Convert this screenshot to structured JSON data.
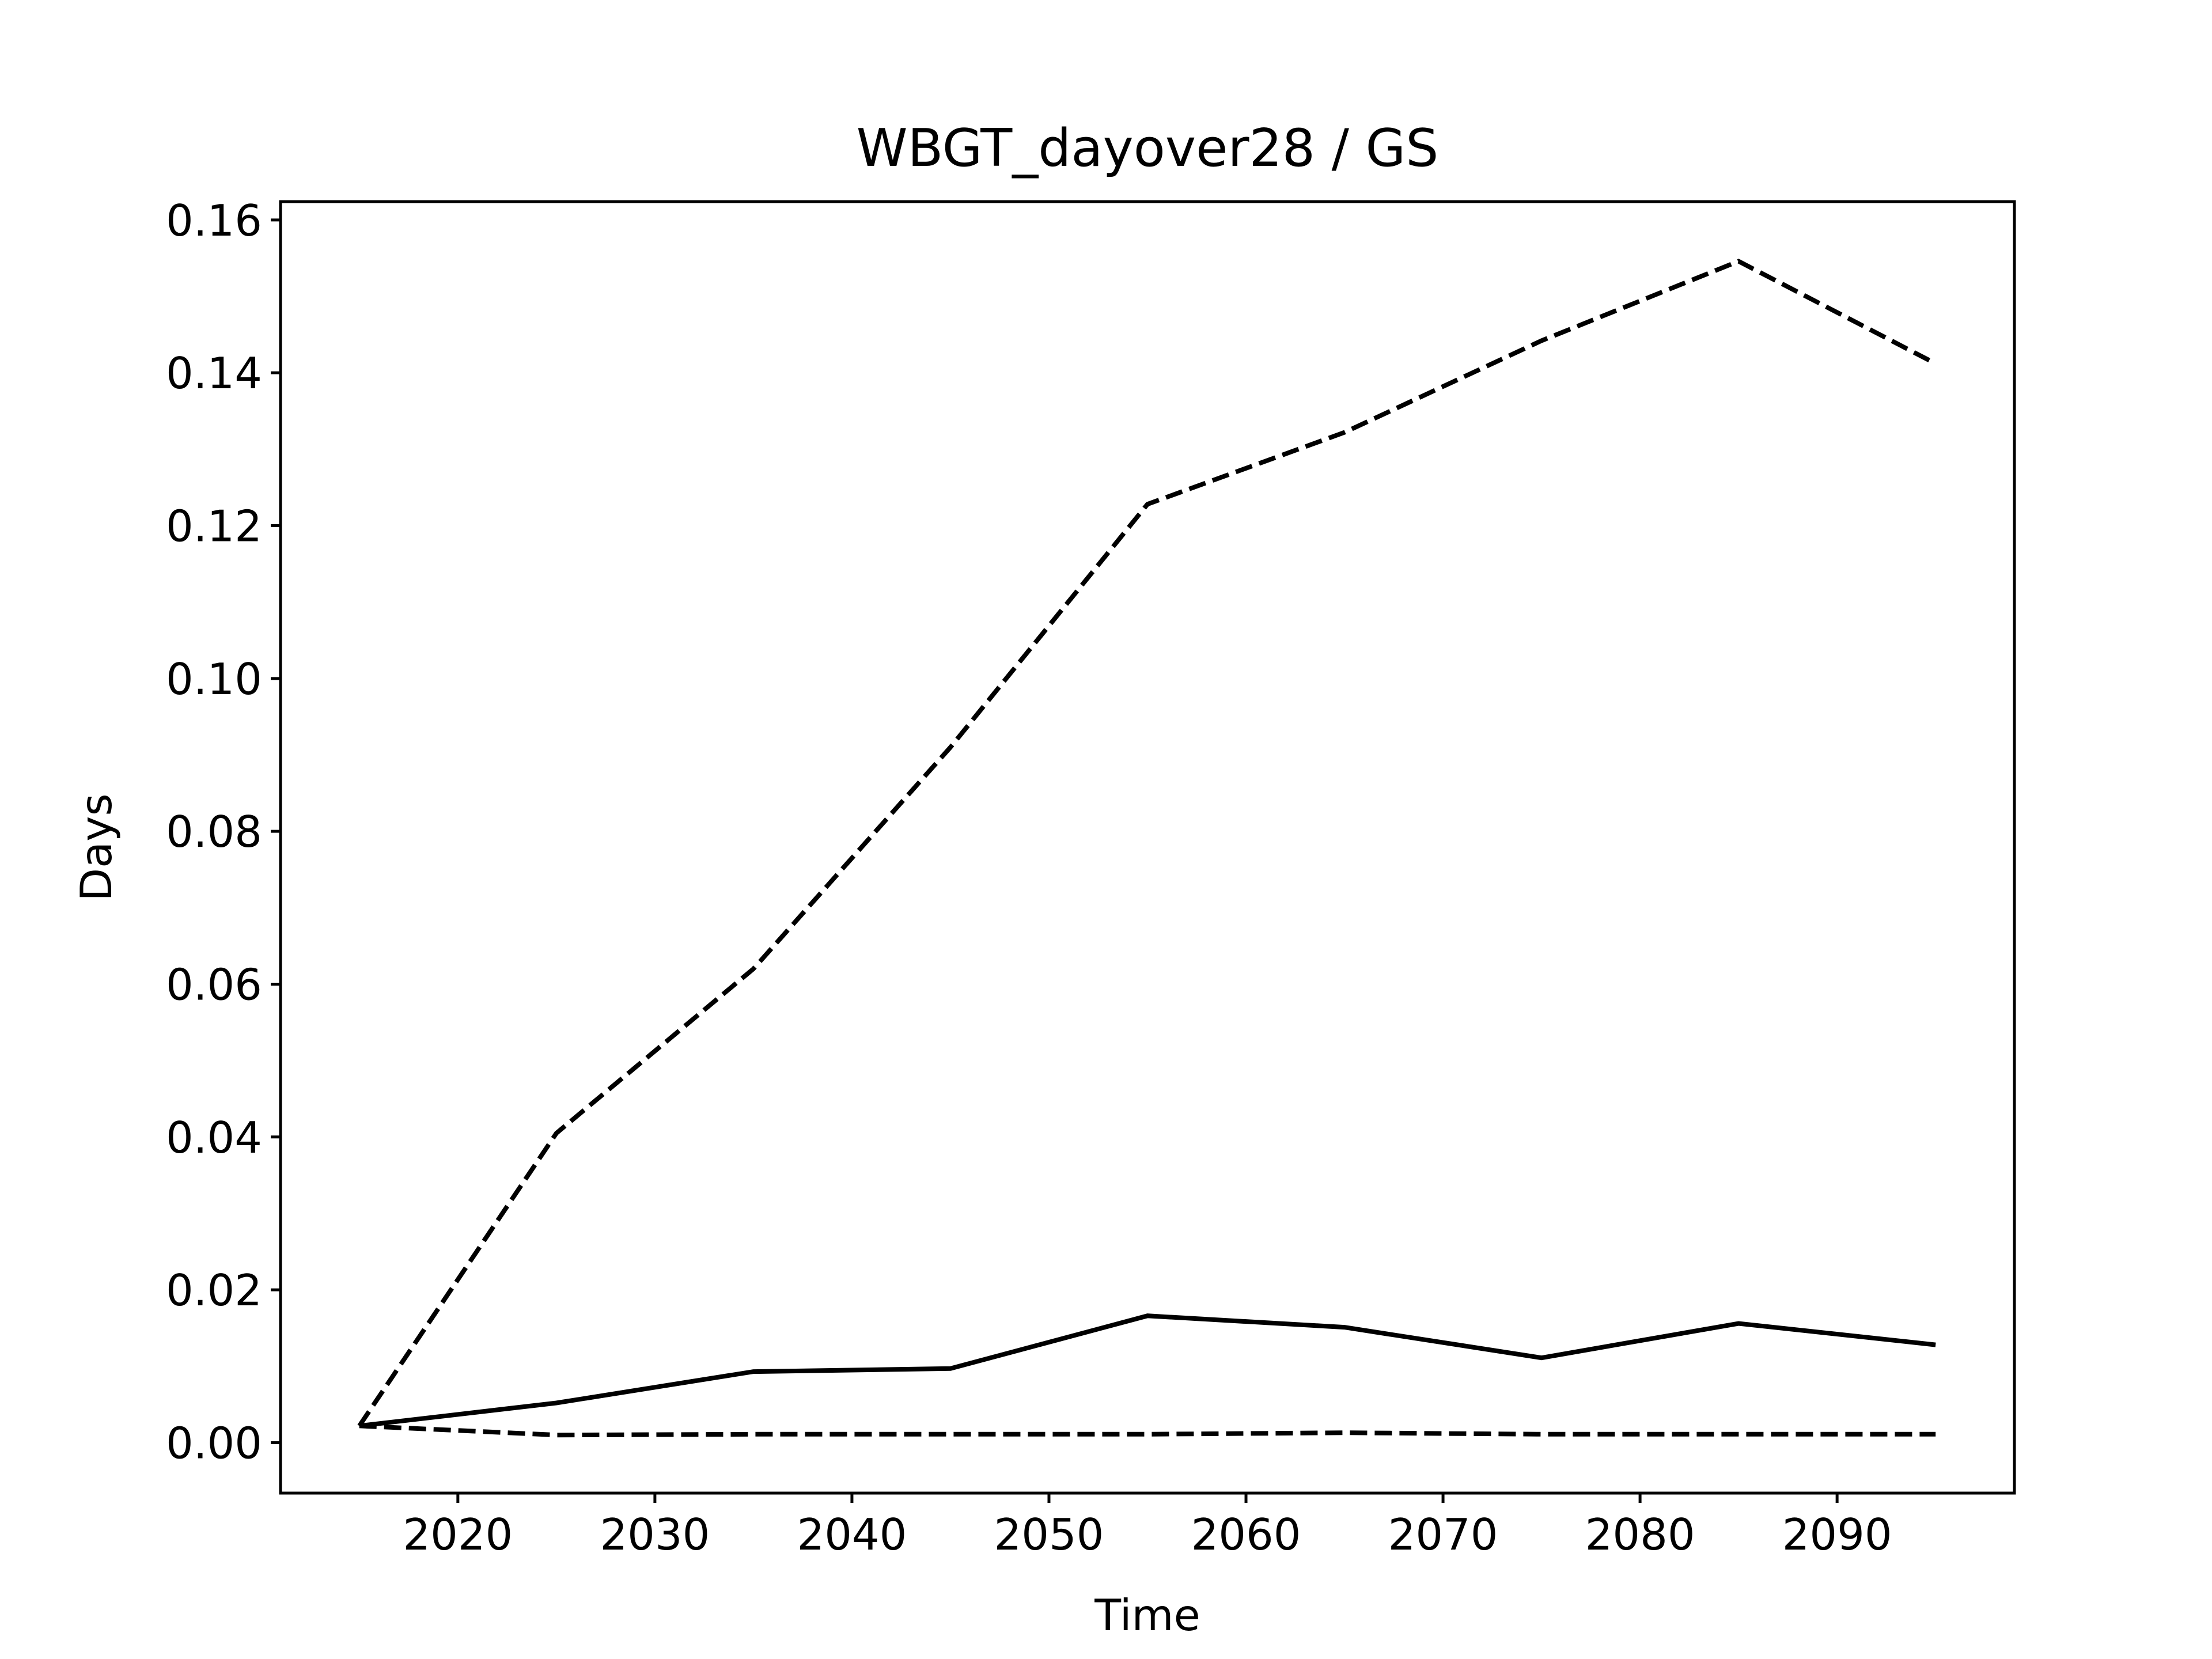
{
  "chart_data": {
    "type": "line",
    "title": "WBGT_dayover28 / GS",
    "xlabel": "Time",
    "ylabel": "Days",
    "xlim": [
      2011,
      2099
    ],
    "ylim": [
      -0.0066,
      0.1624
    ],
    "xticks": [
      2020,
      2030,
      2040,
      2050,
      2060,
      2070,
      2080,
      2090
    ],
    "yticks": [
      0.0,
      0.02,
      0.04,
      0.06,
      0.08,
      0.1,
      0.12,
      0.14,
      0.16
    ],
    "ytick_labels": [
      "0.00",
      "0.02",
      "0.04",
      "0.06",
      "0.08",
      "0.10",
      "0.12",
      "0.14",
      "0.16"
    ],
    "grid": false,
    "series": [
      {
        "style": "dashed",
        "color": "#000000",
        "x": [
          2015,
          2025,
          2035,
          2045,
          2055,
          2065,
          2075,
          2085,
          2095
        ],
        "values": [
          0.0022,
          0.0405,
          0.062,
          0.091,
          0.1228,
          0.1322,
          0.1442,
          0.1546,
          0.1412
        ]
      },
      {
        "style": "solid",
        "color": "#000000",
        "x": [
          2015,
          2025,
          2035,
          2045,
          2055,
          2065,
          2075,
          2085,
          2095
        ],
        "values": [
          0.0022,
          0.0052,
          0.0093,
          0.0097,
          0.0166,
          0.0151,
          0.0111,
          0.0156,
          0.0128
        ]
      },
      {
        "style": "dashed",
        "color": "#000000",
        "x": [
          2015,
          2025,
          2035,
          2045,
          2055,
          2065,
          2075,
          2085,
          2095
        ],
        "values": [
          0.0022,
          0.001,
          0.0011,
          0.0011,
          0.0011,
          0.0013,
          0.0011,
          0.0011,
          0.0011
        ]
      }
    ]
  }
}
